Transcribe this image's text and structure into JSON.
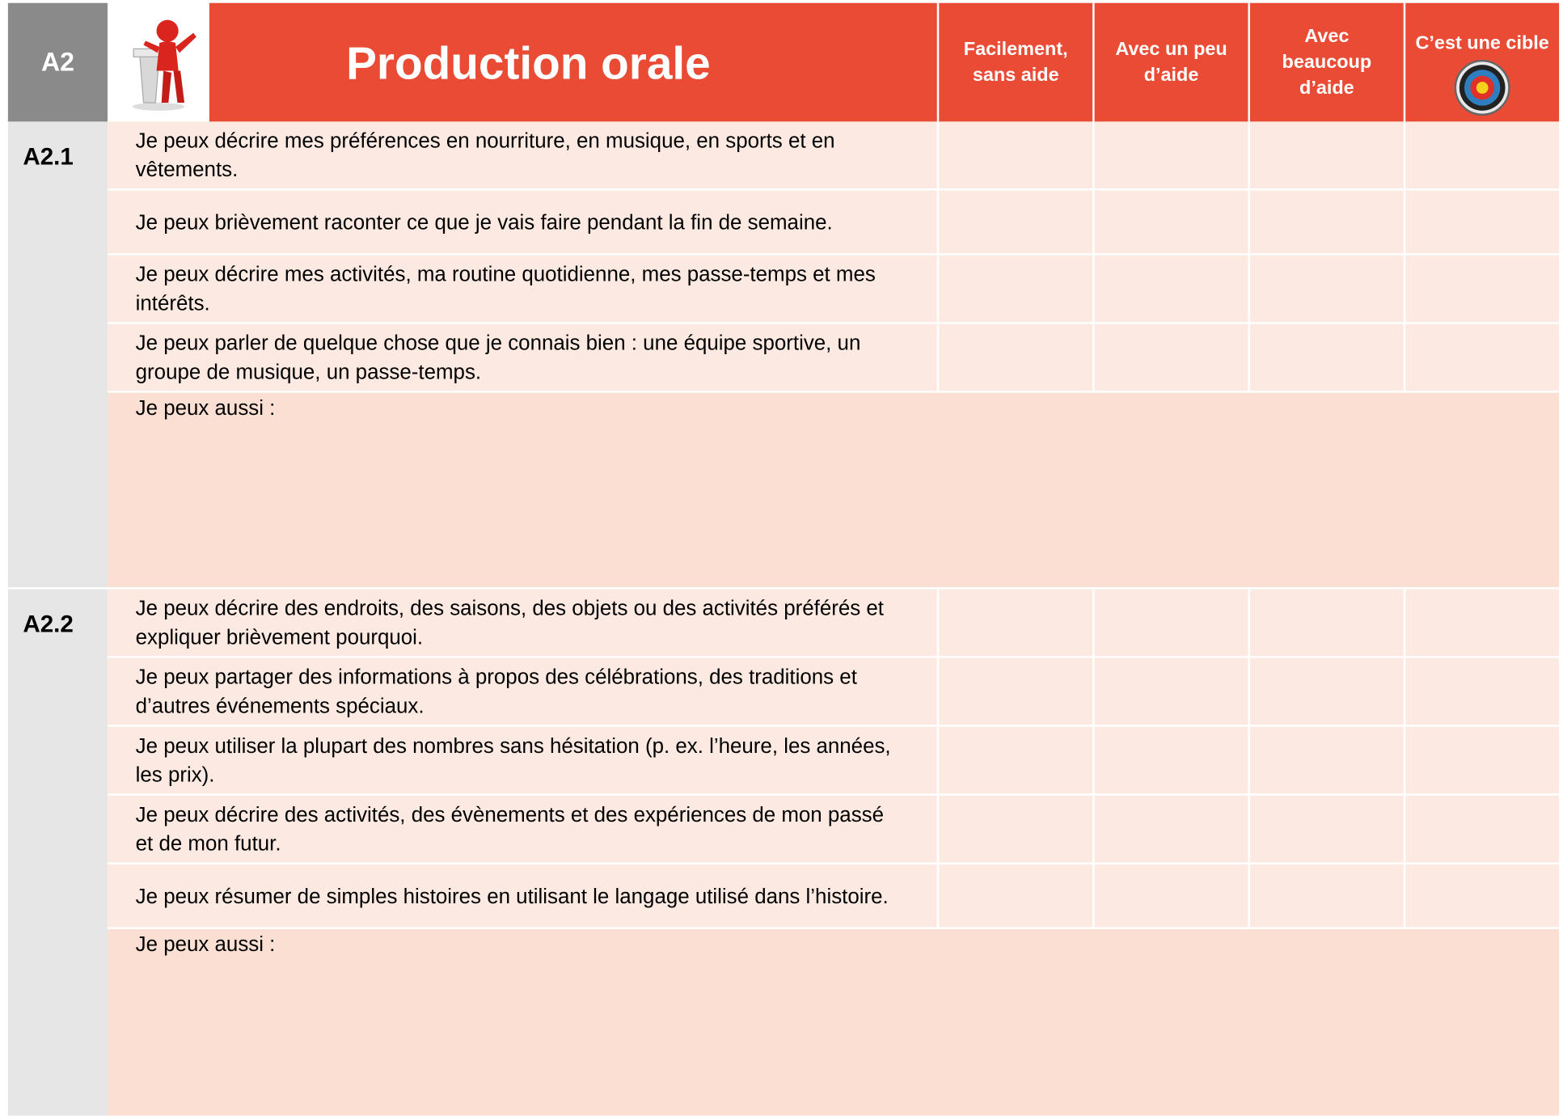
{
  "header": {
    "level": "A2",
    "title": "Production orale",
    "columns": [
      "Facilement, sans aide",
      "Avec un peu d’aide",
      "Avec beaucoup d’aide",
      "C’est une cible"
    ]
  },
  "sections": [
    {
      "label": "A2.1",
      "items": [
        "Je peux décrire mes préférences en nourriture, en musique, en sports et en vêtements.",
        "Je peux brièvement raconter ce que je vais faire pendant la fin de semaine.",
        "Je peux décrire mes activités, ma routine quotidienne, mes passe-temps et mes intérêts.",
        "Je peux parler de quelque chose que je connais bien : une équipe sportive, un groupe de musique, un passe-temps."
      ],
      "also": "Je peux aussi :"
    },
    {
      "label": "A2.2",
      "items": [
        "Je peux décrire des endroits, des saisons, des objets ou des activités préférés et expliquer brièvement pourquoi.",
        "Je peux partager des informations à propos des célébrations, des traditions et d’autres événements spéciaux.",
        "Je peux utiliser la plupart des nombres sans hésitation (p. ex. l’heure, les années, les prix).",
        "Je peux décrire des activités, des évènements et des expériences de mon passé et de mon futur.",
        "Je peux résumer de simples histoires en utilisant le langage utilisé dans l’histoire."
      ],
      "also": "Je peux aussi :"
    }
  ]
}
